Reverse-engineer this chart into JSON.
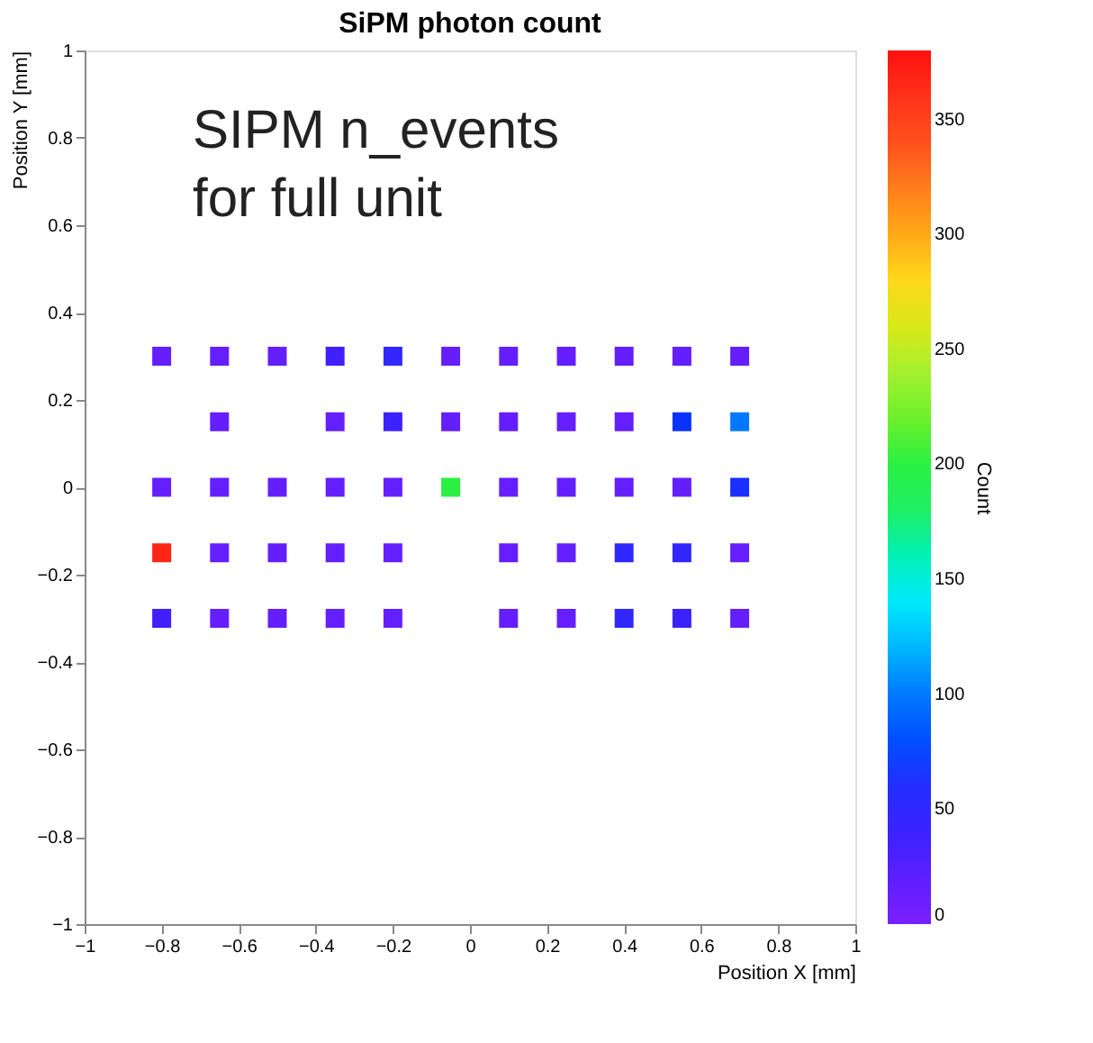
{
  "chart_data": {
    "type": "scatter",
    "title": "SiPM photon count",
    "xlabel": "Position X [mm]",
    "ylabel": "Position Y [mm]",
    "clabel": "Count",
    "annotations": [
      "SIPM n_events\nfor full unit"
    ],
    "marker": "square",
    "grid": false,
    "xlim": [
      -1,
      1
    ],
    "ylim": [
      -1,
      1
    ],
    "xticks": [
      -1,
      -0.8,
      -0.6,
      -0.4,
      -0.2,
      0,
      0.2,
      0.4,
      0.6,
      0.8,
      1
    ],
    "yticks": [
      -1,
      -0.8,
      -0.6,
      -0.4,
      -0.2,
      0,
      0.2,
      0.4,
      0.6,
      0.8,
      1
    ],
    "clim": [
      0,
      380
    ],
    "cticks": [
      0,
      50,
      100,
      150,
      200,
      250,
      300,
      350
    ],
    "x": [
      -0.8,
      -0.65,
      -0.5,
      -0.35,
      -0.2,
      -0.05,
      0.1,
      0.25,
      0.4,
      0.55,
      0.7,
      -0.65,
      -0.35,
      -0.2,
      -0.05,
      0.1,
      0.25,
      0.4,
      0.55,
      0.7,
      -0.8,
      -0.65,
      -0.5,
      -0.35,
      -0.2,
      -0.05,
      0.1,
      0.25,
      0.4,
      0.55,
      0.7,
      -0.8,
      -0.65,
      -0.5,
      -0.35,
      -0.2,
      0.1,
      0.25,
      0.4,
      0.55,
      0.7,
      -0.8,
      -0.65,
      -0.5,
      -0.35,
      -0.2,
      0.1,
      0.25,
      0.4,
      0.55,
      0.7
    ],
    "values": [
      0.3,
      0.3,
      0.3,
      0.3,
      0.3,
      0.3,
      0.3,
      0.3,
      0.3,
      0.3,
      0.3,
      0.15,
      0.15,
      0.15,
      0.15,
      0.15,
      0.15,
      0.15,
      0.15,
      0.15,
      0,
      0,
      0,
      0,
      0,
      0,
      0,
      0,
      0,
      0,
      0,
      -0.15,
      -0.15,
      -0.15,
      -0.15,
      -0.15,
      -0.15,
      -0.15,
      -0.15,
      -0.15,
      -0.15,
      -0.3,
      -0.3,
      -0.3,
      -0.3,
      -0.3,
      -0.3,
      -0.3,
      -0.3,
      -0.3,
      -0.3
    ],
    "cvalues": [
      15,
      15,
      15,
      35,
      50,
      15,
      15,
      15,
      15,
      15,
      15,
      15,
      15,
      40,
      15,
      15,
      15,
      15,
      70,
      100,
      15,
      15,
      15,
      15,
      15,
      200,
      15,
      15,
      15,
      15,
      65,
      370,
      15,
      15,
      15,
      15,
      15,
      15,
      50,
      50,
      15,
      35,
      15,
      15,
      15,
      15,
      15,
      15,
      50,
      40,
      15
    ]
  }
}
